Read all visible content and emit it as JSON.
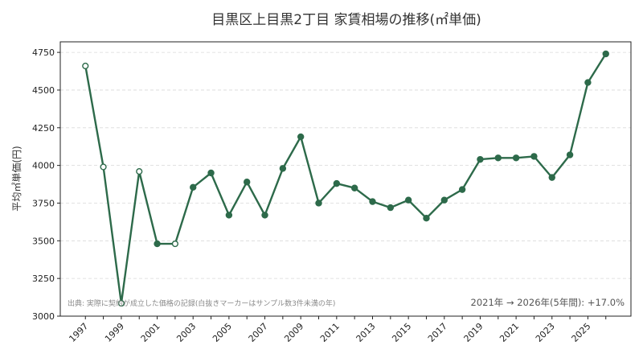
{
  "chart_data": {
    "type": "line",
    "title": "目黒区上目黒2丁目 家賃相場の推移(㎡単価)",
    "xlabel": "",
    "ylabel": "平均㎡単価(円)",
    "x": [
      1997,
      1998,
      1999,
      2000,
      2001,
      2002,
      2003,
      2004,
      2005,
      2006,
      2007,
      2008,
      2009,
      2010,
      2011,
      2012,
      2013,
      2014,
      2015,
      2016,
      2017,
      2018,
      2019,
      2020,
      2021,
      2022,
      2023,
      2024,
      2025,
      2026
    ],
    "series": [
      {
        "values": [
          4660,
          3990,
          3085,
          3960,
          3480,
          3480,
          3855,
          3950,
          3670,
          3890,
          3670,
          3980,
          4190,
          3750,
          3880,
          3850,
          3760,
          3720,
          3770,
          3650,
          3770,
          3840,
          4040,
          4050,
          4050,
          4060,
          3920,
          4070,
          4550,
          4740
        ],
        "small_sample": [
          true,
          true,
          true,
          true,
          false,
          true,
          false,
          false,
          false,
          false,
          false,
          false,
          false,
          false,
          false,
          false,
          false,
          false,
          false,
          false,
          false,
          false,
          false,
          false,
          false,
          false,
          false,
          false,
          false,
          false
        ]
      }
    ],
    "xticks": [
      "1997",
      "1999",
      "2001",
      "2003",
      "2005",
      "2007",
      "2009",
      "2011",
      "2013",
      "2015",
      "2017",
      "2019",
      "2021",
      "2023",
      "2025"
    ],
    "yticks": [
      "3000",
      "3250",
      "3500",
      "3750",
      "4000",
      "4250",
      "4500",
      "4750"
    ],
    "xlim": [
      1995.6,
      2027.4
    ],
    "ylim": [
      3000,
      4820
    ],
    "grid": true,
    "note": "出典: 実際に契約が成立した価格の記録(白抜きマーカーはサンプル数3件未満の年)",
    "summary": "2021年 → 2026年(5年間): +17.0%",
    "colors": {
      "line": "#2d6a4a",
      "marker": "#2d6a4a",
      "hollow_fill": "#ffffff"
    }
  }
}
